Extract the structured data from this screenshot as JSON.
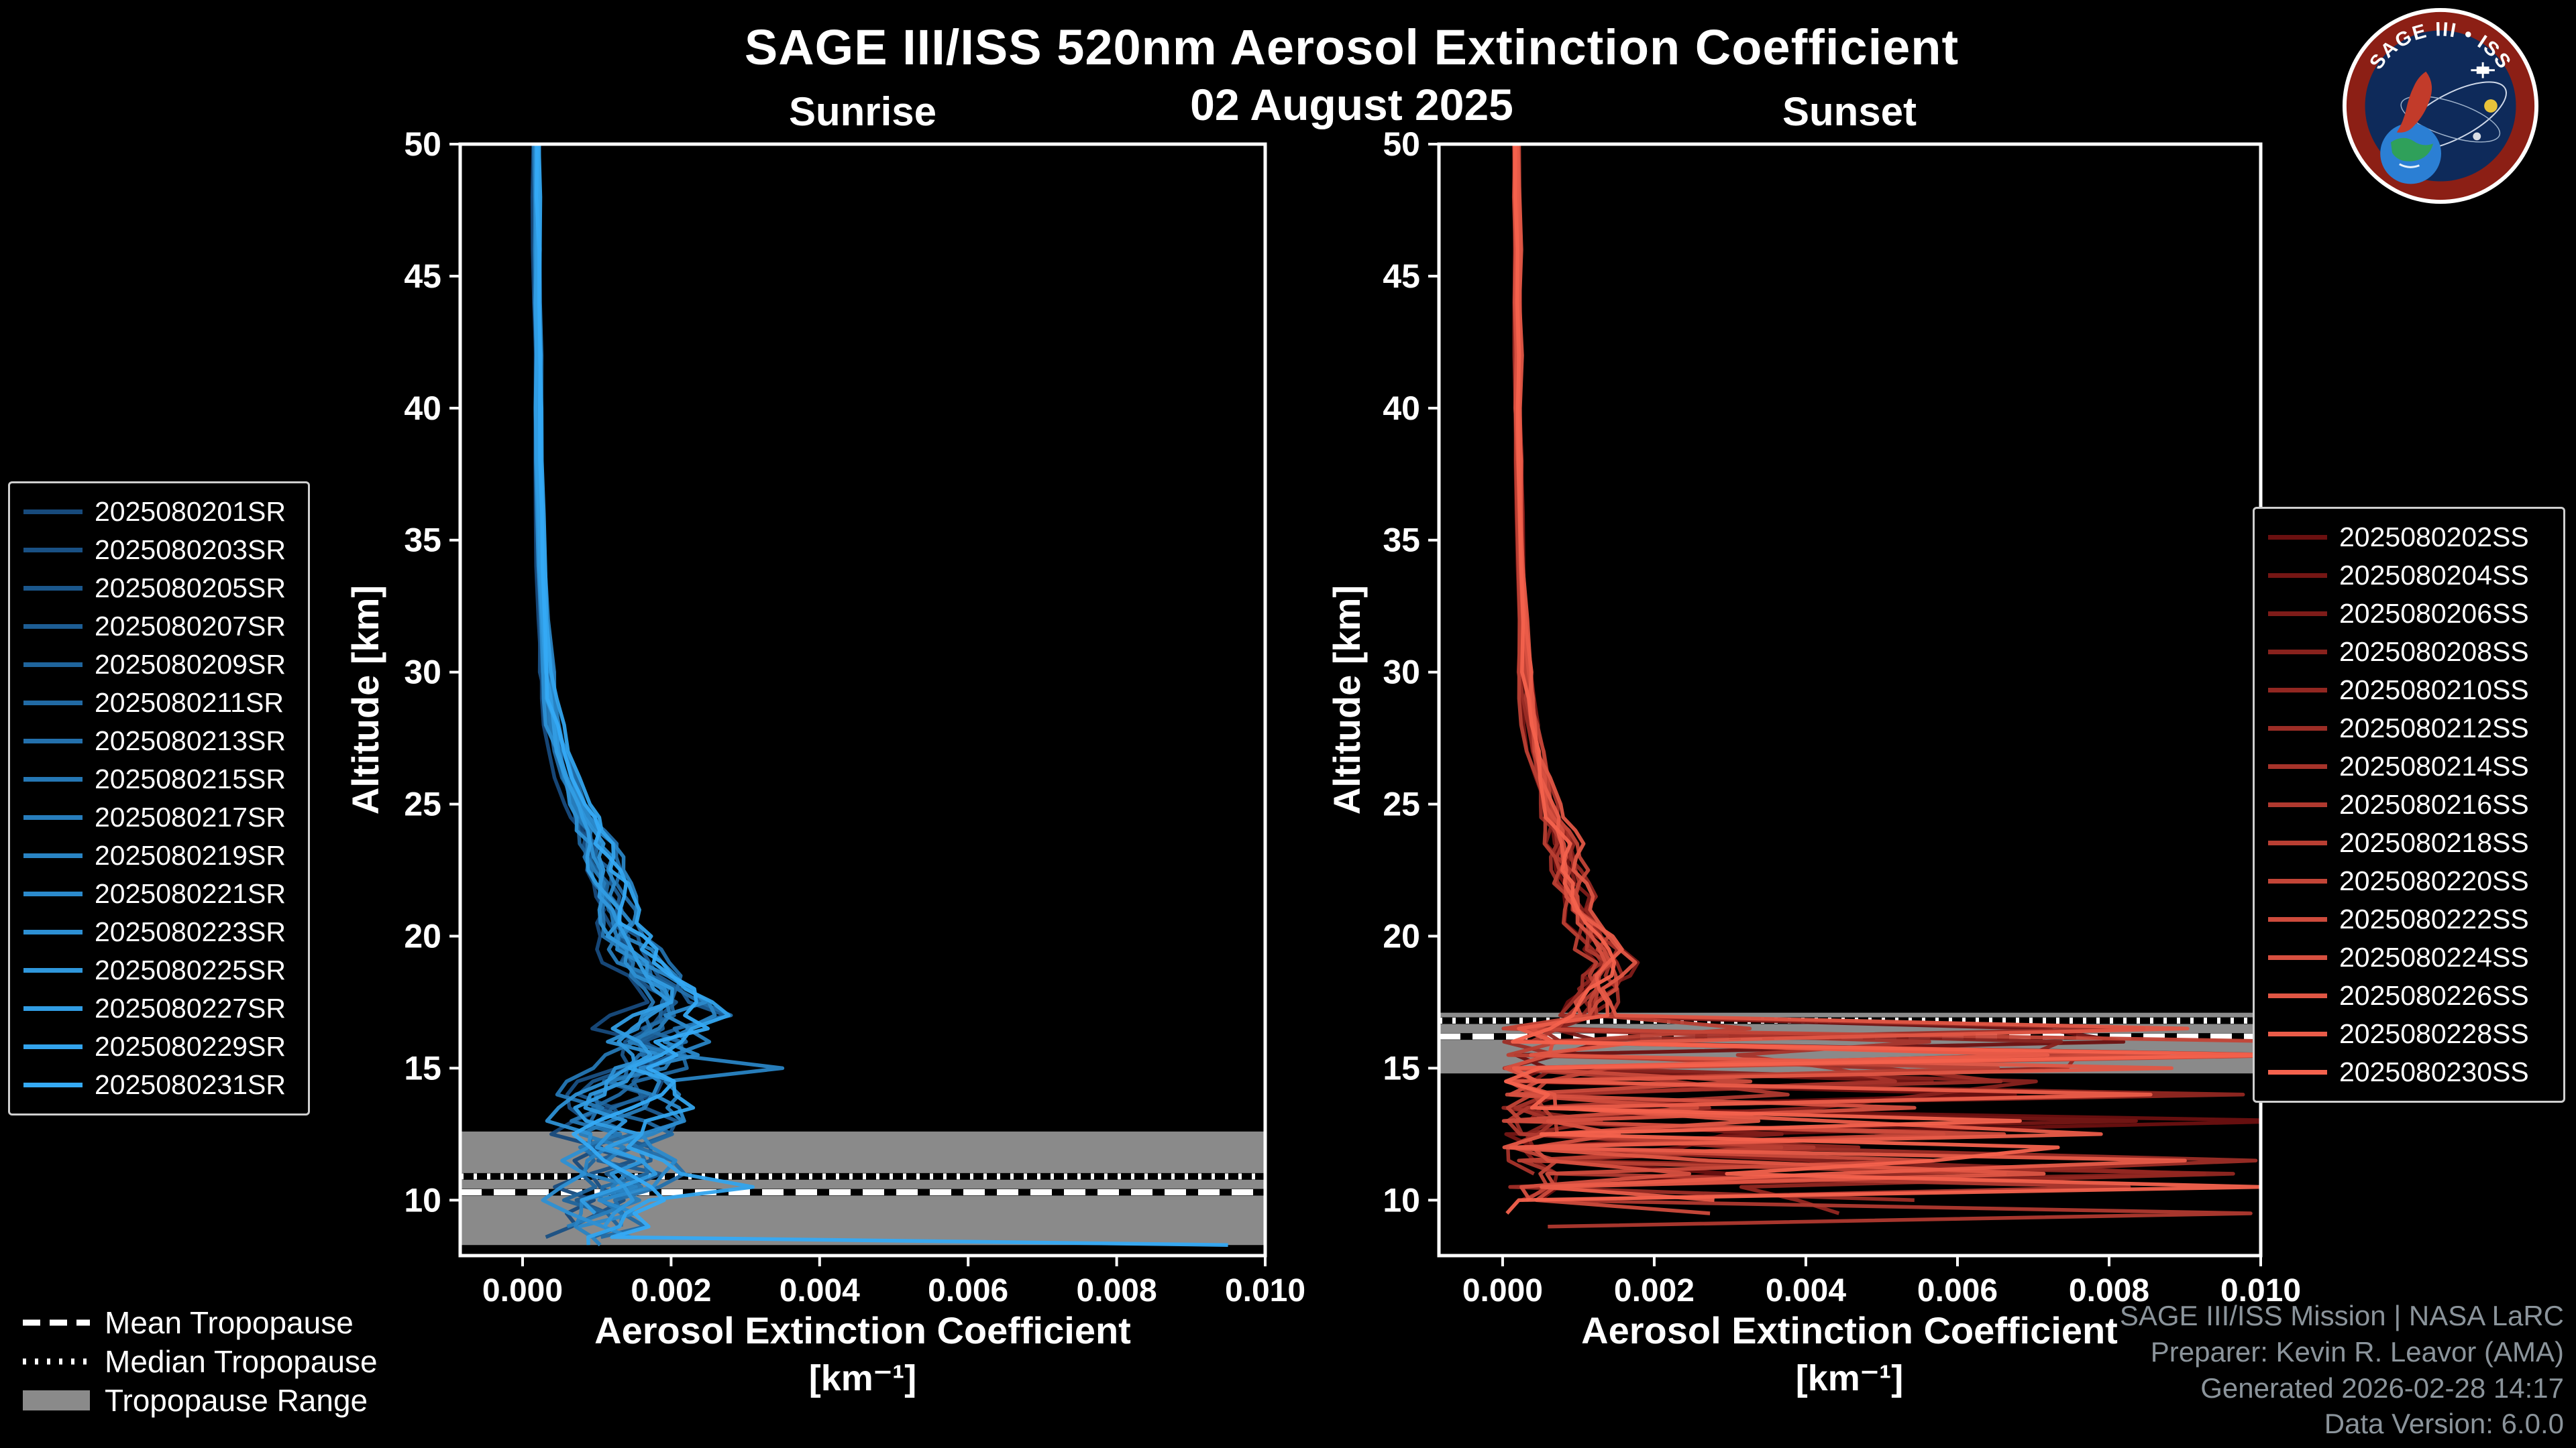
{
  "page": {
    "title": "SAGE III/ISS 520nm Aerosol Extinction Coefficient",
    "subtitle": "02 August 2025",
    "background": "#000000"
  },
  "logo": {
    "text": "SAGE III • ISS"
  },
  "credits": {
    "line1": "SAGE III/ISS Mission | NASA LaRC",
    "line2": "Preparer: Kevin R. Leavor (AMA)",
    "line3": "Generated 2026-02-28 14:17",
    "line4": "Data Version: 6.0.0"
  },
  "tropopause_legend": {
    "mean_label": "Mean Tropopause",
    "median_label": "Median Tropopause",
    "range_label": "Tropopause Range"
  },
  "chart_data": {
    "type": "line",
    "title": "SAGE III/ISS 520nm Aerosol Extinction Coefficient",
    "subtitle": "02 August 2025",
    "xlabel_line1": "Aerosol Extinction Coefficient",
    "xlabel_line2": "[km⁻¹]",
    "ylabel": "Altitude [km]",
    "xlim": [
      -0.00084,
      0.01
    ],
    "ylim": [
      7.9,
      50
    ],
    "xticks": [
      "0.000",
      "0.002",
      "0.004",
      "0.006",
      "0.008",
      "0.010"
    ],
    "xtick_values": [
      0.0,
      0.002,
      0.004,
      0.006,
      0.008,
      0.01
    ],
    "yticks": [
      10,
      15,
      20,
      25,
      30,
      35,
      40,
      45,
      50
    ],
    "grid": false,
    "legend_position": "outside-left-and-right",
    "altitude_grid": [
      50,
      48,
      46,
      44,
      42,
      40,
      38,
      36,
      34,
      32,
      30,
      29,
      28,
      27,
      26,
      25,
      24.5,
      24,
      23.5,
      23,
      22.5,
      22,
      21.5,
      21,
      20.5,
      20,
      19.5,
      19,
      18.5,
      18,
      17.5,
      17,
      16.5,
      16,
      15.5,
      15,
      14.5,
      14,
      13.5,
      13,
      12.5,
      12,
      11.5,
      11,
      10.5,
      10,
      9.5,
      9,
      8.6,
      8.3
    ],
    "panels": [
      {
        "id": "sunrise",
        "title": "Sunrise",
        "tropopause": {
          "mean_km": 10.3,
          "median_km": 10.9,
          "range_km": [
            8.3,
            12.6
          ]
        },
        "cloud_top_km": null,
        "base_extinction": [
          0.00018,
          0.00018,
          0.00019,
          0.00019,
          0.0002,
          0.0002,
          0.00021,
          0.00022,
          0.00024,
          0.00027,
          0.00032,
          0.00036,
          0.00042,
          0.0005,
          0.0006,
          0.00072,
          0.0008,
          0.00088,
          0.00095,
          0.001,
          0.00105,
          0.0011,
          0.00115,
          0.0012,
          0.00125,
          0.0013,
          0.0014,
          0.00155,
          0.0017,
          0.00185,
          0.00195,
          0.002,
          0.00195,
          0.00185,
          0.00175,
          0.00165,
          0.00155,
          0.00145,
          0.0014,
          0.00135,
          0.0013,
          0.00125,
          0.0013,
          0.0014,
          0.0013,
          0.0011,
          0.001,
          0.0009,
          0.00095,
          0.001
        ],
        "spikes": [
          {
            "series_index": 15,
            "alt_km": 8.4,
            "value": 0.0095
          },
          {
            "series_index": 14,
            "alt_km": 10.4,
            "value": 0.0031
          },
          {
            "series_index": 9,
            "alt_km": 15.0,
            "value": 0.0035
          }
        ],
        "series": [
          {
            "label": "2025080201SR",
            "color": "#174A7C",
            "seed": 1,
            "scale": 0.85
          },
          {
            "label": "2025080203SR",
            "color": "#195084",
            "seed": 2,
            "scale": 0.9
          },
          {
            "label": "2025080205SR",
            "color": "#1B578C",
            "seed": 3,
            "scale": 1.0
          },
          {
            "label": "2025080207SR",
            "color": "#1D5D94",
            "seed": 4,
            "scale": 1.1
          },
          {
            "label": "2025080209SR",
            "color": "#1F649C",
            "seed": 5,
            "scale": 0.95
          },
          {
            "label": "2025080211SR",
            "color": "#216AA4",
            "seed": 6,
            "scale": 1.05
          },
          {
            "label": "2025080213SR",
            "color": "#2370AC",
            "seed": 7,
            "scale": 1.15
          },
          {
            "label": "2025080215SR",
            "color": "#2577B4",
            "seed": 8,
            "scale": 0.9
          },
          {
            "label": "2025080217SR",
            "color": "#277DBC",
            "seed": 9,
            "scale": 1.0
          },
          {
            "label": "2025080219SR",
            "color": "#2984C4",
            "seed": 10,
            "scale": 1.2
          },
          {
            "label": "2025080221SR",
            "color": "#2B8ACC",
            "seed": 11,
            "scale": 1.1
          },
          {
            "label": "2025080223SR",
            "color": "#2D90D4",
            "seed": 12,
            "scale": 0.95
          },
          {
            "label": "2025080225SR",
            "color": "#2F97DC",
            "seed": 13,
            "scale": 1.05
          },
          {
            "label": "2025080227SR",
            "color": "#319DE4",
            "seed": 14,
            "scale": 1.0
          },
          {
            "label": "2025080229SR",
            "color": "#33A4ED",
            "seed": 15,
            "scale": 1.25
          },
          {
            "label": "2025080231SR",
            "color": "#35AAF5",
            "seed": 16,
            "scale": 1.15
          }
        ]
      },
      {
        "id": "sunset",
        "title": "Sunset",
        "tropopause": {
          "mean_km": 16.2,
          "median_km": 16.8,
          "range_km": [
            14.8,
            17.1
          ]
        },
        "cloud_top_km": 16.6,
        "base_extinction": [
          0.00018,
          0.00018,
          0.00019,
          0.00019,
          0.0002,
          0.0002,
          0.00021,
          0.00022,
          0.00024,
          0.00027,
          0.0003,
          0.00033,
          0.00037,
          0.00042,
          0.0005,
          0.0006,
          0.00065,
          0.0007,
          0.00075,
          0.0008,
          0.00085,
          0.0009,
          0.00095,
          0.001,
          0.00108,
          0.00118,
          0.00128,
          0.00135,
          0.0013,
          0.0012,
          0.00115,
          0.0011,
          0.001,
          0.0009,
          0.00085,
          0.0008,
          0.00078,
          0.00075,
          0.00072,
          0.0007,
          0.00068,
          0.00066,
          0.00064,
          0.00062,
          0.0006,
          0.00058,
          0.00056,
          0.00054,
          0.00052,
          0.0005
        ],
        "spikes": [],
        "series": [
          {
            "label": "2025080202SS",
            "color": "#6B1010",
            "seed": 101,
            "scale": 0.9
          },
          {
            "label": "2025080204SS",
            "color": "#751614",
            "seed": 102,
            "scale": 1.0
          },
          {
            "label": "2025080206SS",
            "color": "#7F1C19",
            "seed": 103,
            "scale": 1.1
          },
          {
            "label": "2025080208SS",
            "color": "#88221D",
            "seed": 104,
            "scale": 0.95
          },
          {
            "label": "2025080210SS",
            "color": "#922721",
            "seed": 105,
            "scale": 1.05
          },
          {
            "label": "2025080212SS",
            "color": "#9C2D26",
            "seed": 106,
            "scale": 0.85
          },
          {
            "label": "2025080214SS",
            "color": "#A6332A",
            "seed": 107,
            "scale": 1.15
          },
          {
            "label": "2025080216SS",
            "color": "#B0392F",
            "seed": 108,
            "scale": 1.0
          },
          {
            "label": "2025080218SS",
            "color": "#B93F33",
            "seed": 109,
            "scale": 0.9
          },
          {
            "label": "2025080220SS",
            "color": "#C34537",
            "seed": 110,
            "scale": 1.1
          },
          {
            "label": "2025080222SS",
            "color": "#CD4B3C",
            "seed": 111,
            "scale": 1.05
          },
          {
            "label": "2025080224SS",
            "color": "#D75040",
            "seed": 112,
            "scale": 0.95
          },
          {
            "label": "2025080226SS",
            "color": "#E05644",
            "seed": 113,
            "scale": 1.2
          },
          {
            "label": "2025080228SS",
            "color": "#EA5C49",
            "seed": 114,
            "scale": 1.1
          },
          {
            "label": "2025080230SS",
            "color": "#F4624D",
            "seed": 115,
            "scale": 1.0
          }
        ]
      }
    ]
  }
}
